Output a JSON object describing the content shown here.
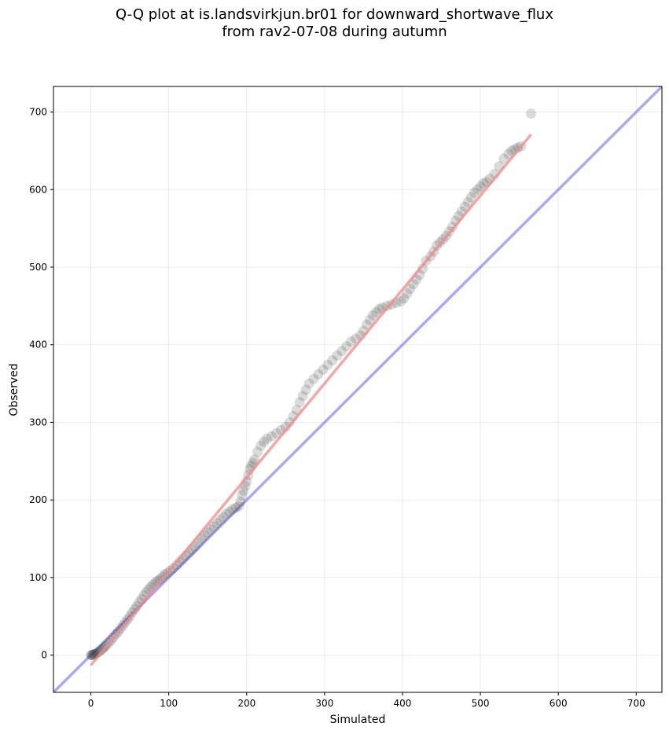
{
  "title_lines": [
    "Q-Q plot at is.landsvirkjun.br01 for downward_shortwave_flux",
    "from rav2-07-08 during autumn"
  ],
  "chart_data": {
    "type": "scatter",
    "title": "Q-Q plot at is.landsvirkjun.br01 for downward_shortwave_flux\nfrom rav2-07-08 during autumn",
    "xlabel": "Simulated",
    "ylabel": "Observed",
    "xlim": [
      -48,
      733
    ],
    "ylim": [
      -48,
      733
    ],
    "xticks": [
      0,
      100,
      200,
      300,
      400,
      500,
      600,
      700
    ],
    "yticks": [
      0,
      100,
      200,
      300,
      400,
      500,
      600,
      700
    ],
    "grid": true,
    "colors": {
      "points": "#3a3a3a",
      "identity_line": "#6f6ff0",
      "fit_line": "#f08a8a"
    },
    "series": [
      {
        "type": "scatter",
        "x": [
          0,
          1,
          2,
          3,
          4,
          5,
          6,
          8,
          10,
          12,
          14,
          16,
          18,
          20,
          23,
          26,
          29,
          32,
          35,
          38,
          41,
          44,
          47,
          50,
          53,
          56,
          59,
          62,
          65,
          68,
          71,
          74,
          77,
          80,
          83,
          86,
          89,
          92,
          95,
          98,
          102,
          106,
          110,
          114,
          118,
          122,
          126,
          130,
          134,
          138,
          142,
          146,
          150,
          154,
          158,
          162,
          166,
          170,
          174,
          178,
          182,
          186,
          190,
          192,
          194,
          196,
          198,
          200,
          202,
          204,
          206,
          208,
          210,
          214,
          218,
          222,
          226,
          232,
          238,
          244,
          250,
          255,
          260,
          264,
          268,
          272,
          276,
          280,
          286,
          292,
          298,
          304,
          310,
          316,
          322,
          328,
          334,
          340,
          346,
          350,
          354,
          358,
          362,
          366,
          370,
          374,
          380,
          386,
          392,
          398,
          402,
          406,
          410,
          414,
          418,
          422,
          426,
          430,
          436,
          440,
          444,
          448,
          452,
          456,
          460,
          464,
          468,
          472,
          476,
          480,
          484,
          488,
          492,
          496,
          500,
          504,
          508,
          512,
          518,
          524,
          530,
          536,
          540,
          544,
          548,
          552,
          565
        ],
        "y": [
          0,
          0,
          0,
          1,
          1,
          1,
          2,
          3,
          4,
          6,
          7,
          9,
          11,
          13,
          16,
          19,
          23,
          27,
          30,
          34,
          38,
          42,
          46,
          50,
          55,
          59,
          63,
          68,
          72,
          77,
          81,
          85,
          88,
          91,
          94,
          96,
          98,
          101,
          104,
          106,
          109,
          112,
          116,
          120,
          124,
          128,
          132,
          136,
          140,
          145,
          150,
          154,
          158,
          162,
          166,
          170,
          174,
          178,
          182,
          185,
          188,
          190,
          192,
          198,
          206,
          212,
          218,
          224,
          232,
          240,
          244,
          248,
          252,
          262,
          270,
          275,
          279,
          282,
          286,
          290,
          294,
          300,
          308,
          316,
          326,
          334,
          342,
          350,
          356,
          362,
          368,
          374,
          380,
          386,
          392,
          398,
          404,
          408,
          412,
          418,
          426,
          432,
          438,
          442,
          446,
          448,
          450,
          452,
          454,
          456,
          460,
          466,
          472,
          478,
          484,
          490,
          498,
          508,
          514,
          520,
          528,
          532,
          536,
          540,
          546,
          552,
          560,
          566,
          572,
          578,
          584,
          590,
          596,
          600,
          604,
          608,
          610,
          614,
          620,
          630,
          640,
          646,
          650,
          652,
          654,
          656,
          698
        ]
      },
      {
        "type": "line",
        "name": "identity",
        "x": [
          -48,
          733
        ],
        "y": [
          -48,
          733
        ]
      },
      {
        "type": "line",
        "name": "fit",
        "x": [
          0,
          565
        ],
        "y": [
          -13,
          671
        ]
      }
    ]
  }
}
